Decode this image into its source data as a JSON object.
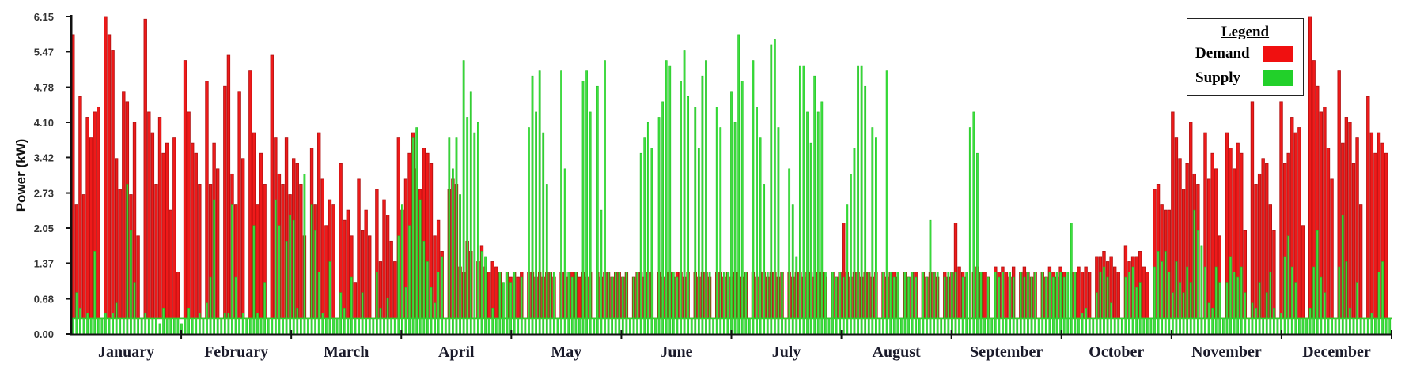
{
  "chart_data": {
    "type": "bar",
    "title": "",
    "ylabel": "Power (kW)",
    "xlabel": "",
    "ylim": [
      0,
      6.15
    ],
    "yticks": [
      "0.00",
      "0.68",
      "1.37",
      "2.05",
      "2.73",
      "3.42",
      "4.10",
      "4.78",
      "5.47",
      "6.15"
    ],
    "categories": [
      "January",
      "February",
      "March",
      "April",
      "May",
      "June",
      "July",
      "August",
      "September",
      "October",
      "November",
      "December"
    ],
    "baseline": 0.3,
    "legend": {
      "title": "Legend",
      "placement": "top-right"
    },
    "series": [
      {
        "name": "Demand",
        "color": "#e01010",
        "daily_peak_by_month": [
          [
            5.8,
            2.5,
            4.6,
            2.7,
            4.2,
            3.8,
            4.3,
            4.4,
            0,
            6.15,
            5.8,
            5.5,
            3.4,
            2.8,
            4.7,
            4.5,
            2.7,
            4.1,
            1.9,
            0,
            6.1,
            4.3,
            3.9,
            2.9,
            4.2,
            3.5,
            3.7,
            2.4,
            3.8,
            1.2,
            0
          ],
          [
            5.3,
            4.3,
            3.7,
            3.5,
            2.9,
            0,
            4.9,
            2.9,
            3.7,
            3.2,
            0,
            4.8,
            5.4,
            3.1,
            2.5,
            4.7,
            3.4,
            0,
            5.1,
            3.9,
            2.5,
            3.5,
            2.9,
            0,
            5.4,
            3.8,
            3.1,
            2.9
          ],
          [
            3.8,
            2.7,
            3.4,
            3.3,
            2.9,
            1.9,
            0,
            3.6,
            2.5,
            3.9,
            3.0,
            2.1,
            2.6,
            2.5,
            0,
            3.3,
            2.2,
            2.4,
            1.9,
            1.0,
            3.0,
            2.0,
            2.4,
            1.9,
            0,
            2.8,
            1.4,
            2.6,
            2.3,
            1.8,
            1.4
          ],
          [
            3.8,
            2.4,
            3.0,
            3.5,
            3.9,
            3.2,
            2.8,
            3.6,
            3.5,
            3.3,
            1.9,
            2.2,
            1.6,
            0,
            2.8,
            3.0,
            2.9,
            1.3,
            1.2,
            1.8,
            1.6,
            0,
            1.4,
            1.7,
            1.3,
            1.2,
            1.4,
            1.3,
            1.2,
            0
          ],
          [
            1.2,
            1.1,
            1.2,
            1.1,
            1.2,
            0,
            1.2,
            1.2,
            1.1,
            1.2,
            1.1,
            1.2,
            1.2,
            1.1,
            0,
            1.2,
            1.2,
            1.1,
            1.2,
            1.2,
            1.1,
            1.2,
            1.1,
            1.2,
            0,
            1.2,
            1.1,
            1.2,
            1.2,
            1.1,
            1.2
          ],
          [
            1.2,
            1.1,
            1.2,
            0,
            1.1,
            1.2,
            1.2,
            1.1,
            1.2,
            1.2,
            0,
            1.2,
            1.1,
            1.2,
            1.2,
            1.1,
            1.2,
            1.2,
            1.1,
            1.2,
            0,
            1.2,
            1.1,
            1.2,
            1.2,
            1.1,
            0,
            1.2,
            1.2,
            1.1
          ],
          [
            1.2,
            1.1,
            1.2,
            1.2,
            1.1,
            1.2,
            0,
            1.2,
            1.1,
            1.2,
            1.2,
            1.1,
            1.2,
            1.2,
            1.1,
            1.2,
            0,
            1.2,
            1.1,
            1.2,
            1.2,
            1.1,
            1.2,
            1.2,
            1.1,
            1.2,
            1.2,
            1.1,
            0,
            1.2,
            1.1
          ],
          [
            1.2,
            2.15,
            1.2,
            1.1,
            1.2,
            1.2,
            1.1,
            1.2,
            1.2,
            1.1,
            1.2,
            0,
            1.2,
            1.1,
            1.2,
            1.2,
            1.1,
            0,
            1.2,
            1.1,
            1.2,
            1.2,
            0,
            1.2,
            1.1,
            1.2,
            1.2,
            1.1,
            0,
            1.2,
            1.1
          ],
          [
            1.2,
            2.15,
            1.3,
            1.2,
            1.1,
            0,
            1.2,
            1.3,
            1.2,
            1.2,
            1.1,
            0,
            1.3,
            1.2,
            1.3,
            1.2,
            1.1,
            1.3,
            0,
            1.2,
            1.3,
            1.2,
            1.1,
            1.2,
            0,
            1.2,
            1.1,
            1.3,
            1.2,
            1.1
          ],
          [
            1.3,
            1.2,
            0,
            1.2,
            1.2,
            1.3,
            1.2,
            1.3,
            1.2,
            0,
            1.5,
            1.5,
            1.6,
            1.4,
            1.5,
            1.3,
            1.2,
            0,
            1.7,
            1.4,
            1.5,
            1.5,
            1.6,
            1.3,
            1.2,
            0,
            2.8,
            2.9,
            2.5,
            2.4,
            2.4
          ],
          [
            4.3,
            3.8,
            3.4,
            2.8,
            3.3,
            4.1,
            3.1,
            2.9,
            0,
            3.9,
            3.0,
            3.5,
            3.2,
            1.9,
            0,
            3.9,
            3.6,
            3.2,
            3.7,
            3.5,
            2.0,
            0,
            4.5,
            2.9,
            3.1,
            3.4,
            3.3,
            2.5,
            2.0,
            0
          ],
          [
            4.5,
            3.3,
            3.5,
            4.2,
            3.9,
            4.0,
            2.1,
            0,
            6.15,
            5.3,
            4.8,
            4.3,
            4.4,
            3.6,
            3.0,
            0,
            5.1,
            3.7,
            4.2,
            4.1,
            3.3,
            3.8,
            2.5,
            0,
            4.6,
            3.9,
            3.5,
            3.9,
            3.7,
            3.5,
            0
          ]
        ]
      },
      {
        "name": "Supply",
        "color": "#22d02a",
        "daily_peak_by_month": [
          [
            0.3,
            0.8,
            0.5,
            0.3,
            0.4,
            0.3,
            1.6,
            0.3,
            0.3,
            0.4,
            0.3,
            0.4,
            0.6,
            0.3,
            0.3,
            2.9,
            2.0,
            1.0,
            0.3,
            0.3,
            0.4,
            0.3,
            0.3,
            0.3,
            0.2,
            0.5,
            0.3,
            0.3,
            0.3,
            0.3,
            0.2
          ],
          [
            0.3,
            0.5,
            0.3,
            0.3,
            0.4,
            0.3,
            0.6,
            1.1,
            2.6,
            0.3,
            0.3,
            0.4,
            0.4,
            2.5,
            1.1,
            0.3,
            0.4,
            0.3,
            0.3,
            2.1,
            0.4,
            0.3,
            1.0,
            0.3,
            0.3,
            2.6,
            2.1,
            0.3
          ],
          [
            1.8,
            2.3,
            2.2,
            0.5,
            0.3,
            3.1,
            0.3,
            2.5,
            2.0,
            1.2,
            0.4,
            0.3,
            1.4,
            0.3,
            0.3,
            0.8,
            0.5,
            0.3,
            1.1,
            0.3,
            0.3,
            0.8,
            0.3,
            0.3,
            0.3,
            1.2,
            0.5,
            0.3,
            0.7,
            0.3,
            0.3
          ],
          [
            1.9,
            2.5,
            0.9,
            2.1,
            3.8,
            4.0,
            2.6,
            1.8,
            1.4,
            0.9,
            0.6,
            1.2,
            1.5,
            0.3,
            3.8,
            3.2,
            3.8,
            2.7,
            5.3,
            4.2,
            4.7,
            3.9,
            4.1,
            1.6,
            1.5,
            0.3,
            0.5,
            0.3,
            1.2,
            1.0
          ],
          [
            1.2,
            1.0,
            1.2,
            0.3,
            1.1,
            0.3,
            4.0,
            5.0,
            4.3,
            5.1,
            3.9,
            2.9,
            1.2,
            1.2,
            0.3,
            5.1,
            3.2,
            1.2,
            1.1,
            1.2,
            0.3,
            4.9,
            5.1,
            4.3,
            0.3,
            4.8,
            2.4,
            5.3,
            1.2,
            1.1,
            1.2
          ],
          [
            1.2,
            1.1,
            1.2,
            0.3,
            1.1,
            1.2,
            3.5,
            3.8,
            4.1,
            3.6,
            0.3,
            4.2,
            4.5,
            5.3,
            5.2,
            1.2,
            1.1,
            4.9,
            5.5,
            4.6,
            0.3,
            4.4,
            3.6,
            5.0,
            5.3,
            1.2,
            0.3,
            4.4,
            4.0,
            1.2
          ],
          [
            1.2,
            4.7,
            4.1,
            5.8,
            4.9,
            1.2,
            0.3,
            5.3,
            4.4,
            3.8,
            2.9,
            1.2,
            5.6,
            5.7,
            4.0,
            1.2,
            0.3,
            3.2,
            2.5,
            1.5,
            5.2,
            5.2,
            4.3,
            3.7,
            5.0,
            4.3,
            4.5,
            1.2,
            0.3,
            1.2,
            1.1
          ],
          [
            1.2,
            1.1,
            2.5,
            3.1,
            3.6,
            5.2,
            5.2,
            4.8,
            1.2,
            4.0,
            3.8,
            0.3,
            1.2,
            5.1,
            1.2,
            1.1,
            1.2,
            0.3,
            1.2,
            1.1,
            1.2,
            1.1,
            0.3,
            1.2,
            1.1,
            2.2,
            1.2,
            1.2,
            0.3,
            1.1,
            1.2
          ],
          [
            1.2,
            1.2,
            0.3,
            1.1,
            1.2,
            4.0,
            4.3,
            3.5,
            1.2,
            0.3,
            1.1,
            0.3,
            1.2,
            1.1,
            1.2,
            0.3,
            1.2,
            1.1,
            0.3,
            1.2,
            1.1,
            1.2,
            1.1,
            1.2,
            0.3,
            1.2,
            1.1,
            1.2,
            1.1,
            1.2
          ],
          [
            1.2,
            1.1,
            1.2,
            2.15,
            1.2,
            0.3,
            0.4,
            0.5,
            0.3,
            0.3,
            0.8,
            1.2,
            1.3,
            1.1,
            0.6,
            0.3,
            0.3,
            0.3,
            1.1,
            1.2,
            1.3,
            0.9,
            1.0,
            0.3,
            0.3,
            0.3,
            1.3,
            1.6,
            1.4,
            1.6,
            1.2
          ],
          [
            0.8,
            1.4,
            1.0,
            0.8,
            1.3,
            1.0,
            2.4,
            2.0,
            1.7,
            1.3,
            0.6,
            0.5,
            1.3,
            1.0,
            0.3,
            1.0,
            1.5,
            1.2,
            1.1,
            1.3,
            0.8,
            0.3,
            0.6,
            0.5,
            1.0,
            0.3,
            0.8,
            1.2,
            0.5,
            0.3
          ],
          [
            0.4,
            1.5,
            1.9,
            1.3,
            1.0,
            0.3,
            0.3,
            0.3,
            0.5,
            1.3,
            2.0,
            1.1,
            0.8,
            0.3,
            0.3,
            0.3,
            1.3,
            2.3,
            1.4,
            0.5,
            0.3,
            1.0,
            0.3,
            0.3,
            0.3,
            0.4,
            0.3,
            1.2,
            1.4,
            0.3,
            0.3
          ]
        ]
      }
    ]
  }
}
